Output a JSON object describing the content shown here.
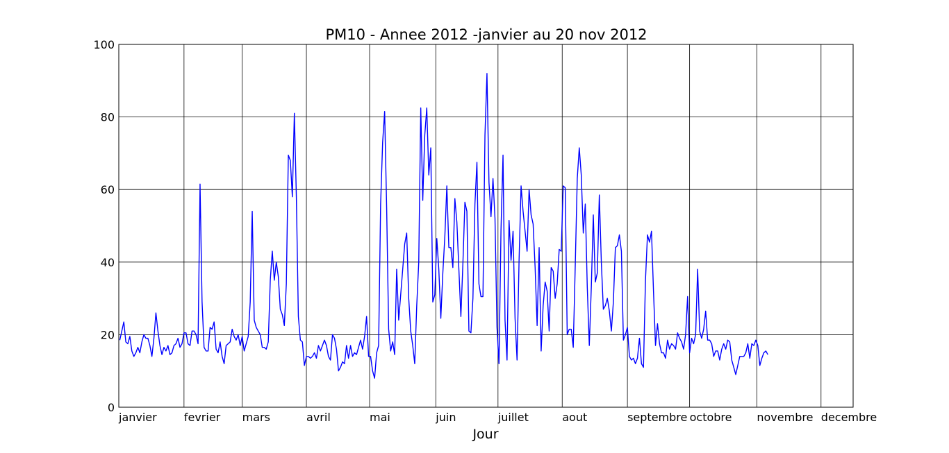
{
  "chart_data": {
    "type": "line",
    "title": "PM10 - Annee 2012 -janvier au 20 nov 2012",
    "xlabel": "Jour",
    "ylabel": "",
    "ylim": [
      0,
      100
    ],
    "xlim": [
      0,
      366
    ],
    "yticks": [
      0,
      20,
      40,
      60,
      80,
      100
    ],
    "grid": true,
    "x_ticks": [
      {
        "day": 0,
        "label": "janvier"
      },
      {
        "day": 32.5,
        "label": "fevrier"
      },
      {
        "day": 61.5,
        "label": "mars"
      },
      {
        "day": 93.5,
        "label": "avril"
      },
      {
        "day": 125,
        "label": "mai"
      },
      {
        "day": 158,
        "label": "juin"
      },
      {
        "day": 189,
        "label": "juillet"
      },
      {
        "day": 221,
        "label": "aout"
      },
      {
        "day": 253.5,
        "label": "septembre"
      },
      {
        "day": 284.5,
        "label": "octobre"
      },
      {
        "day": 318,
        "label": "novembre"
      },
      {
        "day": 350,
        "label": "decembre"
      }
    ],
    "series": [
      {
        "name": "",
        "color": "#0000ff",
        "values": [
          18.5,
          21,
          23.5,
          18,
          17.5,
          19.5,
          15.5,
          14,
          15,
          16.5,
          15,
          18,
          20,
          19,
          19,
          17,
          14,
          19,
          26,
          21,
          17,
          14.5,
          16.5,
          15.5,
          17,
          14.5,
          15,
          17,
          17.5,
          19,
          16.5,
          17.5,
          20.5,
          20.5,
          17.5,
          17,
          21,
          21,
          20,
          17.5,
          61.5,
          29,
          16.5,
          15.5,
          15.5,
          22,
          21.5,
          23.5,
          16,
          15,
          18,
          14,
          12,
          17,
          17.5,
          18,
          21.5,
          19.5,
          18.5,
          20,
          17,
          19.5,
          15.5,
          17.5,
          19.5,
          29,
          54,
          24,
          22,
          21,
          20,
          16.5,
          16.5,
          16,
          18,
          35,
          43,
          35,
          40,
          36,
          27,
          25.5,
          22.5,
          34,
          69.5,
          68,
          58,
          81,
          58,
          25,
          18.5,
          18,
          11.5,
          14,
          14,
          13.5,
          14,
          15,
          13.5,
          17,
          15.5,
          17,
          18.5,
          17,
          14,
          13,
          20,
          19,
          16,
          10,
          11,
          12.5,
          12,
          17,
          13.5,
          17,
          14,
          15,
          14.5,
          16.5,
          18.5,
          16,
          19.5,
          25,
          14,
          14,
          10,
          8,
          15,
          17,
          56,
          73,
          81.5,
          55,
          21.5,
          15.5,
          18,
          14.5,
          38,
          24,
          31,
          38,
          45,
          48,
          30,
          21,
          17,
          12,
          28,
          40,
          82.5,
          57,
          75,
          82.5,
          64,
          71.5,
          29,
          31,
          46.5,
          38,
          24.5,
          37,
          47,
          61,
          44,
          44,
          38.5,
          57.5,
          51,
          38,
          25,
          39.5,
          56.5,
          54,
          21,
          20.5,
          30,
          56,
          67.5,
          34,
          30.5,
          30.5,
          75,
          92,
          62,
          52.5,
          63,
          52,
          22,
          12,
          49,
          69.5,
          24,
          13,
          51.5,
          40.5,
          48.5,
          24.5,
          13,
          40.5,
          61,
          54,
          48.5,
          43,
          60,
          53,
          50.5,
          38.5,
          22.5,
          44,
          15.5,
          28,
          34.5,
          32,
          21,
          38.5,
          37.5,
          30,
          34,
          43.5,
          43,
          61,
          60.5,
          20,
          21.5,
          21.5,
          16.5,
          39,
          63,
          71.5,
          64,
          48,
          56,
          33,
          17,
          33,
          53,
          34.5,
          37,
          58.5,
          40,
          27,
          28,
          30,
          26.5,
          21,
          29,
          44,
          44.5,
          47.5,
          43,
          18.5,
          20,
          22,
          14,
          13,
          13.5,
          12,
          13.5,
          19,
          12,
          11,
          35,
          47.5,
          45.5,
          48.5,
          32,
          17,
          23,
          17.5,
          15,
          15,
          13.5,
          18.5,
          16,
          17.5,
          17,
          16,
          20.5,
          19,
          18,
          16,
          20,
          30.5,
          15,
          19,
          17.5,
          20,
          38,
          21,
          19,
          21.5,
          26.5,
          18.5,
          18.5,
          17.5,
          14,
          15.5,
          15.5,
          13,
          16,
          17.5,
          16,
          18.5,
          18,
          13,
          11,
          9,
          11.5,
          14,
          14,
          14,
          15,
          17.5,
          13.5,
          17.5,
          17,
          18.5,
          17,
          11.5,
          13.5,
          15,
          15.5,
          14.5
        ]
      }
    ]
  }
}
